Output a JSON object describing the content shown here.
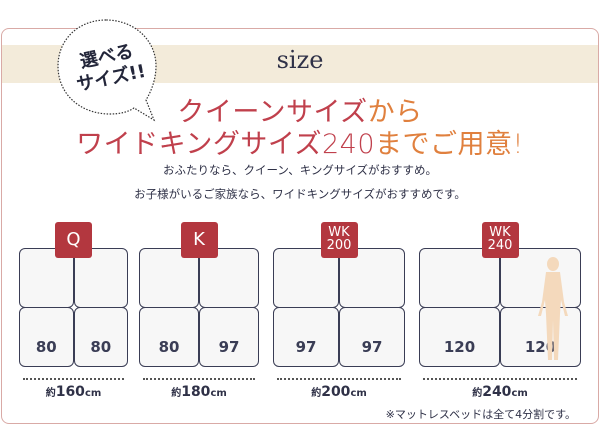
{
  "bubble": {
    "line1": "選べる",
    "line2": "サイズ!!"
  },
  "title": "size",
  "headline": {
    "l1_red": "クイーンサイズ",
    "l1_orange": "から",
    "l2_red": "ワイドキングサイズ240",
    "l2_orange": "までご用意!"
  },
  "sub1": "おふたりなら、クイーン、キングサイズがおすすめ。",
  "sub2": "お子様がいるご家族なら、ワイドキングサイズがおすすめです。",
  "colors": {
    "accent": "#b3373f",
    "headline_red": "#c0404c",
    "headline_orange": "#e0803e",
    "band": "#f3ebda"
  },
  "beds": [
    {
      "badge": "Q",
      "badge2": "",
      "left": "80",
      "right": "80",
      "prefix": "約",
      "width": "160",
      "unit": "cm"
    },
    {
      "badge": "K",
      "badge2": "",
      "left": "80",
      "right": "97",
      "prefix": "約",
      "width": "180",
      "unit": "cm"
    },
    {
      "badge": "WK",
      "badge2": "200",
      "left": "97",
      "right": "97",
      "prefix": "約",
      "width": "200",
      "unit": "cm"
    },
    {
      "badge": "WK",
      "badge2": "240",
      "left": "120",
      "right": "120",
      "prefix": "約",
      "width": "240",
      "unit": "cm"
    }
  ],
  "note": "※マットレスベッドは全て4分割です。"
}
